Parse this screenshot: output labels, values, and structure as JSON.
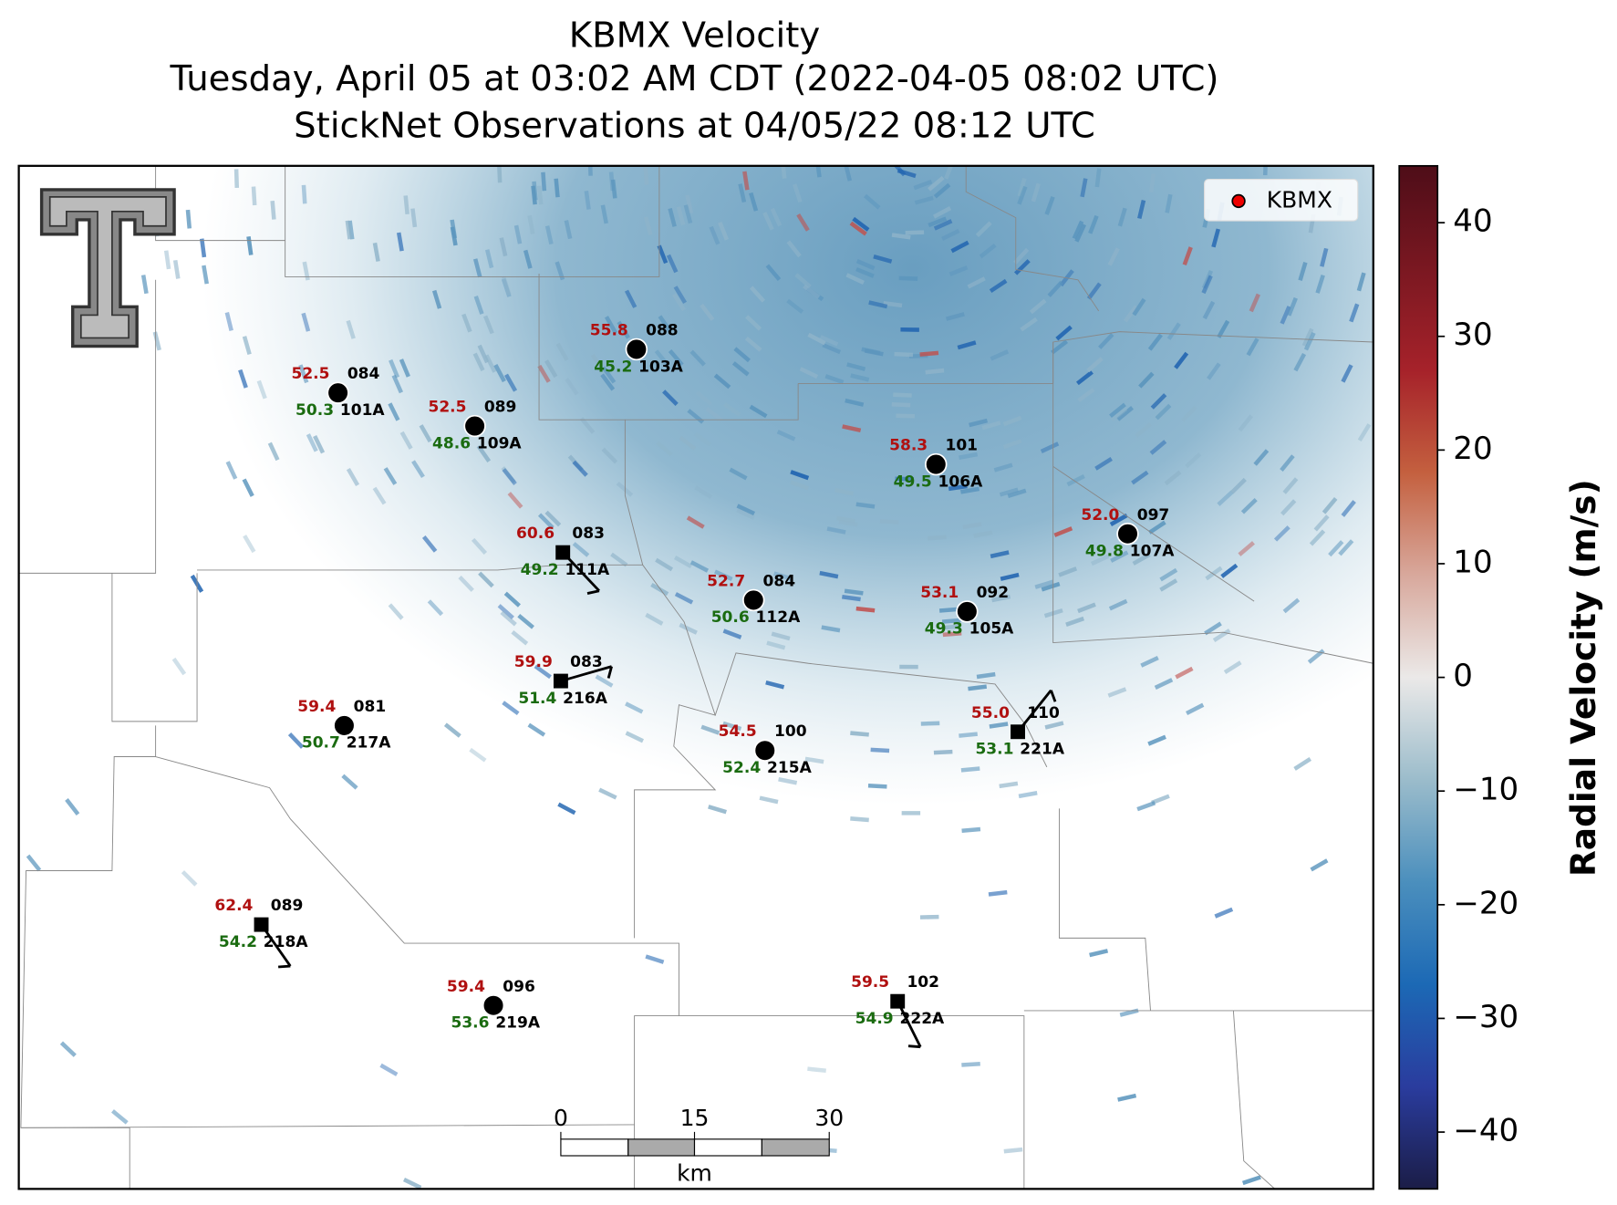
{
  "header": {
    "title": "KBMX Velocity",
    "subtitle": "Tuesday, April 05 at 03:02 AM CDT (2022-04-05 08:02 UTC)",
    "subtitle2": "StickNet Observations at 04/05/22 08:12 UTC"
  },
  "legend": {
    "label": "KBMX"
  },
  "colorbar": {
    "label": "Radial Velocity (m/s)",
    "lim": [
      -45,
      45
    ],
    "ticks": [
      {
        "value": -40,
        "label": "−40"
      },
      {
        "value": -30,
        "label": "−30"
      },
      {
        "value": -20,
        "label": "−20"
      },
      {
        "value": -10,
        "label": "−10"
      },
      0,
      10,
      20,
      30,
      40
    ]
  },
  "scale_bar": {
    "ticks": [
      "0",
      "15",
      "30"
    ],
    "unit": "km"
  },
  "stations": [
    {
      "id": "101A",
      "temperature": "52.5",
      "dewpoint": "50.3",
      "pressure": "084"
    },
    {
      "id": "109A",
      "temperature": "52.5",
      "dewpoint": "48.6",
      "pressure": "089"
    },
    {
      "id": "103A",
      "temperature": "55.8",
      "dewpoint": "45.2",
      "pressure": "088"
    },
    {
      "id": "106A",
      "temperature": "58.3",
      "dewpoint": "49.5",
      "pressure": "101"
    },
    {
      "id": "107A",
      "temperature": "52.0",
      "dewpoint": "49.8",
      "pressure": "097"
    },
    {
      "id": "111A",
      "temperature": "60.6",
      "dewpoint": "49.2",
      "pressure": "083"
    },
    {
      "id": "112A",
      "temperature": "52.7",
      "dewpoint": "50.6",
      "pressure": "084"
    },
    {
      "id": "105A",
      "temperature": "53.1",
      "dewpoint": "49.3",
      "pressure": "092"
    },
    {
      "id": "216A",
      "temperature": "59.9",
      "dewpoint": "51.4",
      "pressure": "083"
    },
    {
      "id": "217A",
      "temperature": "59.4",
      "dewpoint": "50.7",
      "pressure": "081"
    },
    {
      "id": "215A",
      "temperature": "54.5",
      "dewpoint": "52.4",
      "pressure": "100"
    },
    {
      "id": "221A",
      "temperature": "55.0",
      "dewpoint": "53.1",
      "pressure": "110"
    },
    {
      "id": "218A",
      "temperature": "62.4",
      "dewpoint": "54.2",
      "pressure": "089"
    },
    {
      "id": "219A",
      "temperature": "59.4",
      "dewpoint": "53.6",
      "pressure": "096"
    },
    {
      "id": "222A",
      "temperature": "59.5",
      "dewpoint": "54.9",
      "pressure": "102"
    }
  ]
}
